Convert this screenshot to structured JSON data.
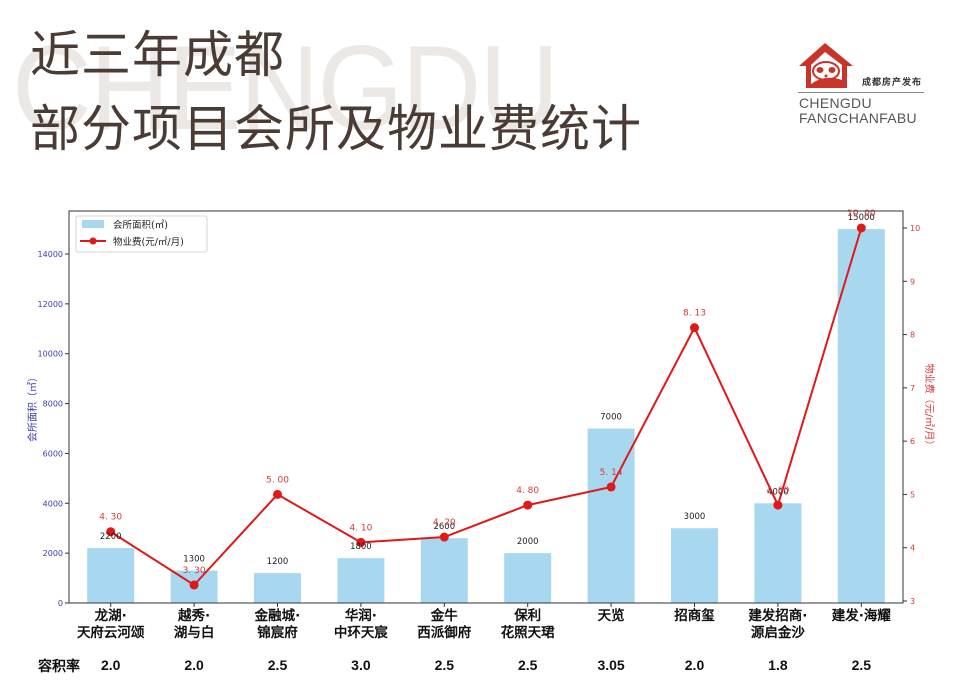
{
  "header": {
    "watermark": "CHENGDU",
    "title_line1": "近三年成都",
    "title_line2": "部分项目会所及物业费统计"
  },
  "logo": {
    "icon": "panda-house-icon",
    "cn_text": "成都房产发布",
    "en_line1": "CHENGDU",
    "en_line2": "FANGCHANFABU",
    "color": "#c8342a"
  },
  "legend": {
    "bar_label": "会所面积(㎡)",
    "line_label": "物业费(元/㎡/月)"
  },
  "axes": {
    "left_label": "会所面积（㎡）",
    "right_label": "物业费（元/㎡/月）",
    "left_ticks": [
      "0",
      "2000",
      "4000",
      "6000",
      "8000",
      "10000",
      "12000",
      "14000"
    ],
    "right_ticks": [
      "3",
      "4",
      "5",
      "6",
      "7",
      "8",
      "9",
      "10"
    ]
  },
  "projects": [
    {
      "line1": "龙湖·",
      "line2": "天府云河颂",
      "area_label": "2200",
      "fee_label": "4.30",
      "far": "2.0"
    },
    {
      "line1": "越秀·",
      "line2": "湖与白",
      "area_label": "1300",
      "fee_label": "3.30",
      "far": "2.0"
    },
    {
      "line1": "金融城·",
      "line2": "锦宸府",
      "area_label": "1200",
      "fee_label": "5.00",
      "far": "2.5"
    },
    {
      "line1": "华润·",
      "line2": "中环天宸",
      "area_label": "1800",
      "fee_label": "4.10",
      "far": "3.0"
    },
    {
      "line1": "金牛",
      "line2": "西派御府",
      "area_label": "2600",
      "fee_label": "4.20",
      "far": "2.5"
    },
    {
      "line1": "保利",
      "line2": "花照天珺",
      "area_label": "2000",
      "fee_label": "4.80",
      "far": "2.5"
    },
    {
      "line1": "天览",
      "line2": "",
      "area_label": "7000",
      "fee_label": "5.14",
      "far": "3.05"
    },
    {
      "line1": "招商玺",
      "line2": "",
      "area_label": "3000",
      "fee_label": "8.13",
      "far": "2.0"
    },
    {
      "line1": "建发招商·",
      "line2": "源启金沙",
      "area_label": "4000",
      "fee_label": "4.80",
      "far": "1.8"
    },
    {
      "line1": "建发·海耀",
      "line2": "",
      "area_label": "15000",
      "fee_label": "10.00",
      "far": "2.5"
    }
  ],
  "far_row_label": "容积率",
  "colors": {
    "bar": "#a8d8ef",
    "line": "#e01818",
    "left_axis_text": "#3b3bb0",
    "right_axis_text": "#d63a3a",
    "title": "#4a3c34"
  },
  "chart_data": {
    "type": "bar",
    "title": "近三年成都部分项目会所及物业费统计",
    "categories": [
      "龙湖·天府云河颂",
      "越秀·湖与白",
      "金融城·锦宸府",
      "华润·中环天宸",
      "金牛西派御府",
      "保利花照天珺",
      "天览",
      "招商玺",
      "建发招商·源启金沙",
      "建发·海耀"
    ],
    "series": [
      {
        "name": "会所面积(㎡)",
        "type": "bar",
        "axis": "left",
        "values": [
          2200,
          1300,
          1200,
          1800,
          2600,
          2000,
          7000,
          3000,
          4000,
          15000
        ]
      },
      {
        "name": "物业费(元/㎡/月)",
        "type": "line",
        "axis": "right",
        "values": [
          4.3,
          3.3,
          5.0,
          4.1,
          4.2,
          4.8,
          5.14,
          8.13,
          4.8,
          10.0
        ]
      }
    ],
    "extra_row": {
      "name": "容积率",
      "values": [
        2.0,
        2.0,
        2.5,
        3.0,
        2.5,
        2.5,
        3.05,
        2.0,
        1.8,
        2.5
      ]
    },
    "xlabel": "",
    "ylabel": "会所面积（㎡）",
    "y2label": "物业费（元/㎡/月）",
    "ylim": [
      0,
      15700
    ],
    "y2lim": [
      2.95,
      10.3
    ],
    "grid": false,
    "legend_position": "upper left"
  }
}
